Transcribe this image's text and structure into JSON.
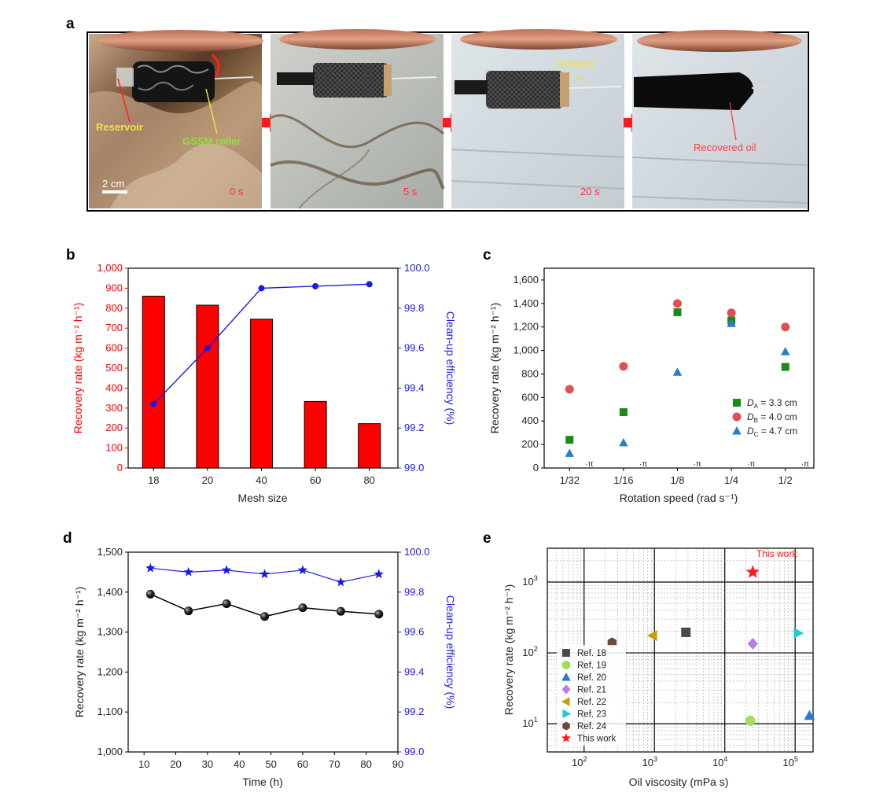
{
  "panels": {
    "a": {
      "letter": "a",
      "photos": [
        {
          "time": "0 s",
          "labels": [
            "Reservoir",
            "GSSM roller"
          ],
          "scale": "2 cm"
        },
        {
          "time": "5 s",
          "labels": []
        },
        {
          "time": "20 s",
          "labels": [
            "Remove"
          ]
        },
        {
          "time": "",
          "labels": [
            "Recovered oil"
          ]
        }
      ],
      "colors": {
        "label_yellow": "#f2e040",
        "label_green": "#8ee23a",
        "label_red": "#ff4040",
        "arrow": "#ff1a1a"
      }
    },
    "b": {
      "letter": "b"
    },
    "c": {
      "letter": "c"
    },
    "d": {
      "letter": "d"
    },
    "e": {
      "letter": "e"
    }
  },
  "chart_data": [
    {
      "panel": "b",
      "type": "bar",
      "categories": [
        "18",
        "20",
        "40",
        "60",
        "80"
      ],
      "series": [
        {
          "name": "",
          "axis": "left",
          "kind": "bar",
          "color": "#ff0000",
          "values": [
            860,
            815,
            745,
            333,
            222
          ]
        },
        {
          "name": "",
          "axis": "right",
          "kind": "line",
          "color": "#1a1ae6",
          "values": [
            99.32,
            99.6,
            99.9,
            99.91,
            99.92
          ]
        }
      ],
      "xlabel": "Mesh size",
      "ylabel": "Recovery rate (kg m⁻² h⁻¹)",
      "y2label": "Clean-up efficiency (%)",
      "ylim": [
        0,
        1000
      ],
      "y2lim": [
        99.0,
        100.0
      ],
      "yticks": [
        "0",
        "100",
        "200",
        "300",
        "400",
        "500",
        "600",
        "700",
        "800",
        "900",
        "1,000"
      ],
      "y2ticks": [
        "99.0",
        "99.2",
        "99.4",
        "99.6",
        "99.8",
        "100.0"
      ]
    },
    {
      "panel": "c",
      "type": "scatter",
      "categories": [
        "1/32",
        "1/16",
        "1/8",
        "1/4",
        "1/2"
      ],
      "category_suffix": "·π",
      "series": [
        {
          "name": "D",
          "sub": "A",
          "value_text": " = 3.3 cm",
          "marker": "square",
          "color": "#1a8a1a",
          "values": [
            240,
            475,
            1325,
            1255,
            860
          ]
        },
        {
          "name": "D",
          "sub": "B",
          "value_text": " = 4.0 cm",
          "marker": "circle",
          "color": "#e05050",
          "values": [
            670,
            865,
            1400,
            1320,
            1200
          ]
        },
        {
          "name": "D",
          "sub": "C",
          "value_text": " = 4.7 cm",
          "marker": "triangle",
          "color": "#2a7fc4",
          "values": [
            125,
            215,
            815,
            1230,
            990
          ]
        }
      ],
      "xlabel": "Rotation speed (rad s⁻¹)",
      "ylabel": "Recovery rate (kg m⁻² h⁻¹)",
      "ylim": [
        0,
        1700
      ],
      "yticks": [
        "0",
        "200",
        "400",
        "600",
        "800",
        "1,000",
        "1,200",
        "1,400",
        "1,600"
      ],
      "legend_position": "right"
    },
    {
      "panel": "d",
      "type": "line",
      "x": [
        12,
        24,
        36,
        48,
        60,
        72,
        84
      ],
      "series": [
        {
          "name": "",
          "axis": "left",
          "marker": "sphere",
          "color": "#000000",
          "values": [
            1395,
            1353,
            1371,
            1339,
            1361,
            1352,
            1345
          ]
        },
        {
          "name": "",
          "axis": "right",
          "marker": "star",
          "color": "#1a1ae6",
          "values": [
            99.92,
            99.9,
            99.91,
            99.89,
            99.91,
            99.85,
            99.89
          ]
        }
      ],
      "xlabel": "Time (h)",
      "ylabel": "Recovery rate (kg m⁻² h⁻¹)",
      "y2label": "Clean-up efficiency (%)",
      "xlim": [
        5,
        90
      ],
      "xticks": [
        "10",
        "20",
        "30",
        "40",
        "50",
        "60",
        "70",
        "80",
        "90"
      ],
      "ylim": [
        1000,
        1500
      ],
      "yticks": [
        "1,000",
        "1,100",
        "1,200",
        "1,300",
        "1,400",
        "1,500"
      ],
      "y2lim": [
        99.0,
        100.0
      ],
      "y2ticks": [
        "99.0",
        "99.2",
        "99.4",
        "99.6",
        "99.8",
        "100.0"
      ]
    },
    {
      "panel": "e",
      "type": "scatter",
      "scale": "log-log",
      "grid": true,
      "series": [
        {
          "name": "Ref. 18",
          "marker": "square",
          "color": "#4a4a4a",
          "x": 2800,
          "y": 195
        },
        {
          "name": "Ref. 19",
          "marker": "circle",
          "color": "#9ee05a",
          "x": 23000,
          "y": 11
        },
        {
          "name": "Ref. 20",
          "marker": "triangle",
          "color": "#2a78d4",
          "x": 160000,
          "y": 13
        },
        {
          "name": "Ref. 21",
          "marker": "diamond",
          "color": "#b77ee8",
          "x": 25000,
          "y": 135
        },
        {
          "name": "Ref. 22",
          "marker": "triangle-left",
          "color": "#c8a000",
          "x": 950,
          "y": 175
        },
        {
          "name": "Ref. 23",
          "marker": "triangle-right",
          "color": "#22c8d4",
          "x": 110000,
          "y": 190
        },
        {
          "name": "Ref. 24",
          "marker": "hexagon",
          "color": "#6b4a3a",
          "x": 250,
          "y": 140
        },
        {
          "name": "This work",
          "marker": "star",
          "color": "#ff1a1a",
          "x": 25000,
          "y": 1380
        }
      ],
      "annotation": "This work",
      "xlabel": "Oil viscosity (mPa s)",
      "ylabel": "Recovery rate (kg m⁻² h⁻¹)",
      "xlim": [
        30,
        180000
      ],
      "ylim": [
        4,
        3000
      ],
      "xticks": [
        {
          "base": "10",
          "exp": "2"
        },
        {
          "base": "10",
          "exp": "3"
        },
        {
          "base": "10",
          "exp": "4"
        },
        {
          "base": "10",
          "exp": "5"
        }
      ],
      "yticks": [
        {
          "base": "10",
          "exp": "1"
        },
        {
          "base": "10",
          "exp": "2"
        },
        {
          "base": "10",
          "exp": "3"
        }
      ],
      "legend_position": "left"
    }
  ]
}
